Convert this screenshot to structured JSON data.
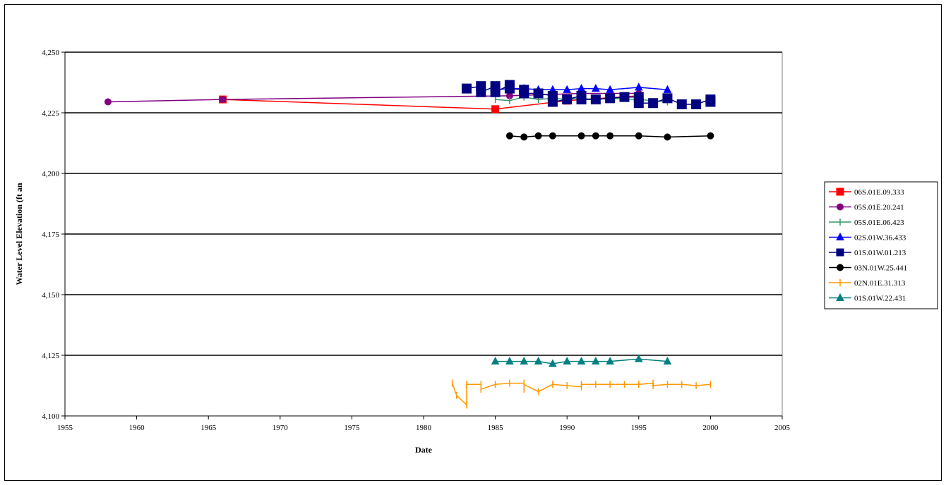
{
  "chart_data": {
    "type": "line",
    "title": "",
    "xlabel": "Date",
    "ylabel": "Water Level Elevation (ft an",
    "xlim": [
      1955,
      2005
    ],
    "ylim": [
      4100,
      4250
    ],
    "xticks": [
      1955,
      1960,
      1965,
      1970,
      1975,
      1980,
      1985,
      1990,
      1995,
      2000,
      2005
    ],
    "yticks": [
      4100,
      4125,
      4150,
      4175,
      4200,
      4225,
      4250
    ],
    "ytick_labels": [
      "4,100",
      "4,125",
      "4,150",
      "4,175",
      "4,200",
      "4,225",
      "4,250"
    ],
    "grid": "horizontal major",
    "legend": "right",
    "series": [
      {
        "name": "06S.01E.09.333",
        "color": "#ff0000",
        "marker": "square",
        "points": [
          [
            1966,
            4230.5
          ],
          [
            1985,
            4226.5
          ],
          [
            1990,
            4230
          ],
          [
            1995,
            4232
          ]
        ]
      },
      {
        "name": "05S.01E.20.241",
        "color": "#800080",
        "marker": "circle",
        "points": [
          [
            1958,
            4229.5
          ],
          [
            1966,
            4230.5
          ],
          [
            1986,
            4232
          ],
          [
            1991,
            4233
          ],
          [
            1995,
            4233
          ]
        ]
      },
      {
        "name": "05S.01E.06.423",
        "color": "#339966",
        "marker": "plus",
        "points": [
          [
            1985,
            4230.5
          ],
          [
            1986,
            4230
          ],
          [
            1987,
            4231.5
          ],
          [
            1988,
            4230.5
          ],
          [
            1989,
            4231
          ],
          [
            1990,
            4230.5
          ],
          [
            1991,
            4231
          ],
          [
            1992,
            4230.5
          ],
          [
            1993,
            4231
          ],
          [
            1995,
            4230.5
          ],
          [
            1997,
            4229.5
          ]
        ]
      },
      {
        "name": "02S.01W.36.433",
        "color": "#0000ff",
        "marker": "triangle",
        "points": [
          [
            1985,
            4234.5
          ],
          [
            1986,
            4235
          ],
          [
            1987,
            4235
          ],
          [
            1988,
            4234.5
          ],
          [
            1989,
            4234.5
          ],
          [
            1990,
            4234.5
          ],
          [
            1991,
            4235
          ],
          [
            1992,
            4235
          ],
          [
            1993,
            4234.5
          ],
          [
            1995,
            4235.5
          ],
          [
            1997,
            4234.5
          ]
        ]
      },
      {
        "name": "01S.01W.01.213",
        "color": "#000080",
        "marker": "square",
        "points": [
          [
            1983,
            4235
          ],
          [
            1984,
            4236
          ],
          [
            1984,
            4233.5
          ],
          [
            1985,
            4236
          ],
          [
            1985,
            4233.5
          ],
          [
            1986,
            4236.5
          ],
          [
            1986,
            4235
          ],
          [
            1987,
            4234.5
          ],
          [
            1987,
            4233
          ],
          [
            1988,
            4233
          ],
          [
            1989,
            4232
          ],
          [
            1989,
            4229.5
          ],
          [
            1990,
            4230.5
          ],
          [
            1991,
            4232
          ],
          [
            1991,
            4230.5
          ],
          [
            1992,
            4230.5
          ],
          [
            1993,
            4231
          ],
          [
            1994,
            4231.5
          ],
          [
            1995,
            4231.5
          ],
          [
            1995,
            4229
          ],
          [
            1996,
            4229
          ],
          [
            1997,
            4231
          ],
          [
            1998,
            4228.5
          ],
          [
            1999,
            4228.5
          ],
          [
            2000,
            4230.5
          ],
          [
            2000,
            4229.5
          ]
        ]
      },
      {
        "name": "03N.01W.25.441",
        "color": "#000000",
        "marker": "circle",
        "points": [
          [
            1986,
            4215.5
          ],
          [
            1987,
            4215
          ],
          [
            1988,
            4215.5
          ],
          [
            1989,
            4215.5
          ],
          [
            1991,
            4215.5
          ],
          [
            1992,
            4215.5
          ],
          [
            1993,
            4215.5
          ],
          [
            1995,
            4215.5
          ],
          [
            1997,
            4215
          ],
          [
            2000,
            4215.5
          ]
        ]
      },
      {
        "name": "02N.01E.31.313",
        "color": "#ff9900",
        "marker": "plus",
        "points": [
          [
            1982,
            4113.5
          ],
          [
            1982.3,
            4108.5
          ],
          [
            1983,
            4104.5
          ],
          [
            1983,
            4113
          ],
          [
            1984,
            4113
          ],
          [
            1984,
            4111
          ],
          [
            1985,
            4113
          ],
          [
            1986,
            4113.5
          ],
          [
            1987,
            4113.5
          ],
          [
            1987,
            4111
          ],
          [
            1987,
            4113
          ],
          [
            1988,
            4110
          ],
          [
            1989,
            4113
          ],
          [
            1990,
            4112.5
          ],
          [
            1991,
            4112
          ],
          [
            1991,
            4113
          ],
          [
            1992,
            4113
          ],
          [
            1993,
            4113
          ],
          [
            1994,
            4113
          ],
          [
            1995,
            4113
          ],
          [
            1996,
            4113.5
          ],
          [
            1996,
            4112.5
          ],
          [
            1997,
            4113
          ],
          [
            1998,
            4113
          ],
          [
            1999,
            4112.5
          ],
          [
            2000,
            4113
          ]
        ]
      },
      {
        "name": "01S.01W.22.431",
        "color": "#008080",
        "marker": "triangle",
        "points": [
          [
            1985,
            4122.5
          ],
          [
            1986,
            4122.5
          ],
          [
            1987,
            4122.5
          ],
          [
            1988,
            4122.5
          ],
          [
            1989,
            4121.5
          ],
          [
            1990,
            4122.5
          ],
          [
            1991,
            4122.5
          ],
          [
            1992,
            4122.5
          ],
          [
            1993,
            4122.5
          ],
          [
            1995,
            4123.5
          ],
          [
            1997,
            4122.5
          ]
        ]
      }
    ]
  }
}
